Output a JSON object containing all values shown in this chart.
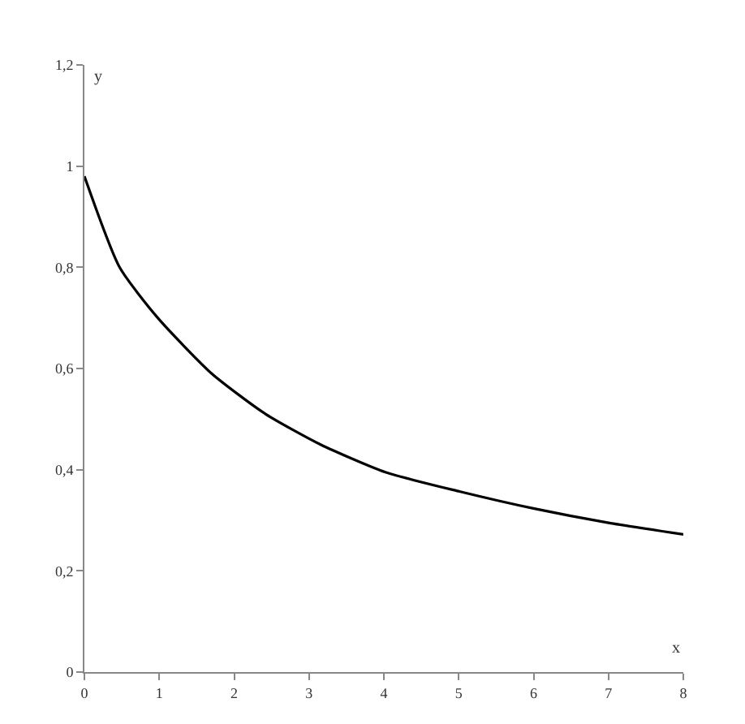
{
  "chart_data": {
    "type": "line",
    "xlabel": "x",
    "ylabel": "y",
    "x": [
      0,
      0.47,
      0.98,
      1.7,
      2.42,
      3.15,
      4.02,
      5.01,
      6.01,
      7.0,
      8
    ],
    "series": [
      {
        "color": "#000000",
        "values": [
          0.98,
          0.8,
          0.7,
          0.59,
          0.51,
          0.45,
          0.395,
          0.357,
          0.323,
          0.295,
          0.272
        ]
      }
    ],
    "xlim": [
      0,
      8
    ],
    "ylim": [
      0,
      1.2
    ],
    "xticks": [
      0,
      1,
      2,
      3,
      4,
      5,
      6,
      7,
      8
    ],
    "yticks": [
      0,
      {
        "value": 0.2,
        "label": "0,2"
      },
      {
        "value": 0.4,
        "label": "0,4"
      },
      {
        "value": 0.6,
        "label": "0,6"
      },
      {
        "value": 0.8,
        "label": "0,8"
      },
      1,
      {
        "value": 1.2,
        "label": "1,2"
      }
    ],
    "marker": "none",
    "line_style": "solid"
  }
}
